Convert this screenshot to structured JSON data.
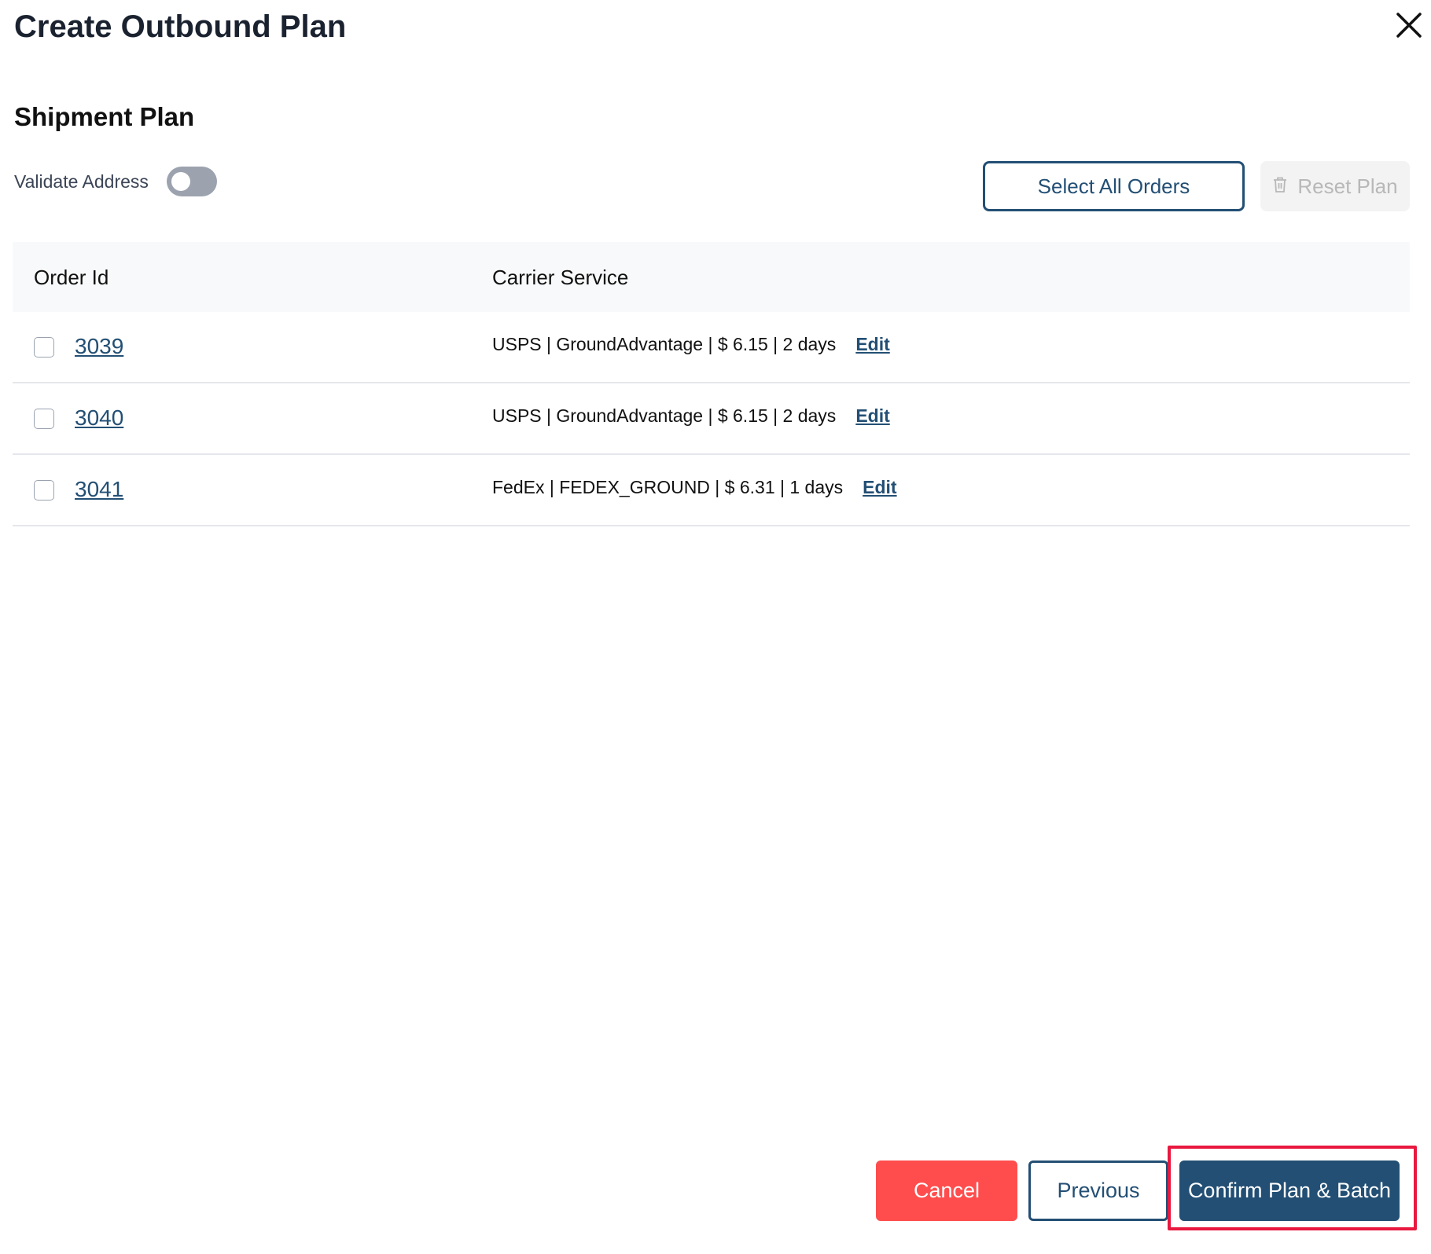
{
  "dialog": {
    "title": "Create Outbound Plan",
    "close_icon": "close-icon"
  },
  "section": {
    "title": "Shipment Plan"
  },
  "validate_address": {
    "label": "Validate Address",
    "enabled": false
  },
  "toolbar": {
    "select_all_label": "Select All Orders",
    "reset_label": "Reset Plan",
    "reset_icon": "trash-icon",
    "reset_disabled": true
  },
  "table": {
    "headers": [
      "Order Id",
      "Carrier Service"
    ],
    "rows": [
      {
        "order_id": "3039",
        "carrier_service": "USPS | GroundAdvantage | $ 6.15 | 2 days",
        "edit_label": "Edit",
        "checked": false
      },
      {
        "order_id": "3040",
        "carrier_service": "USPS | GroundAdvantage | $ 6.15 | 2 days",
        "edit_label": "Edit",
        "checked": false
      },
      {
        "order_id": "3041",
        "carrier_service": "FedEx | FEDEX_GROUND | $ 6.31 | 1 days",
        "edit_label": "Edit",
        "checked": false
      }
    ]
  },
  "footer": {
    "cancel_label": "Cancel",
    "previous_label": "Previous",
    "confirm_label": "Confirm Plan & Batch"
  },
  "colors": {
    "primary": "#234f74",
    "danger": "#ff4d4d",
    "highlight": "#e8183f",
    "toggle_off": "#9ca3af"
  }
}
